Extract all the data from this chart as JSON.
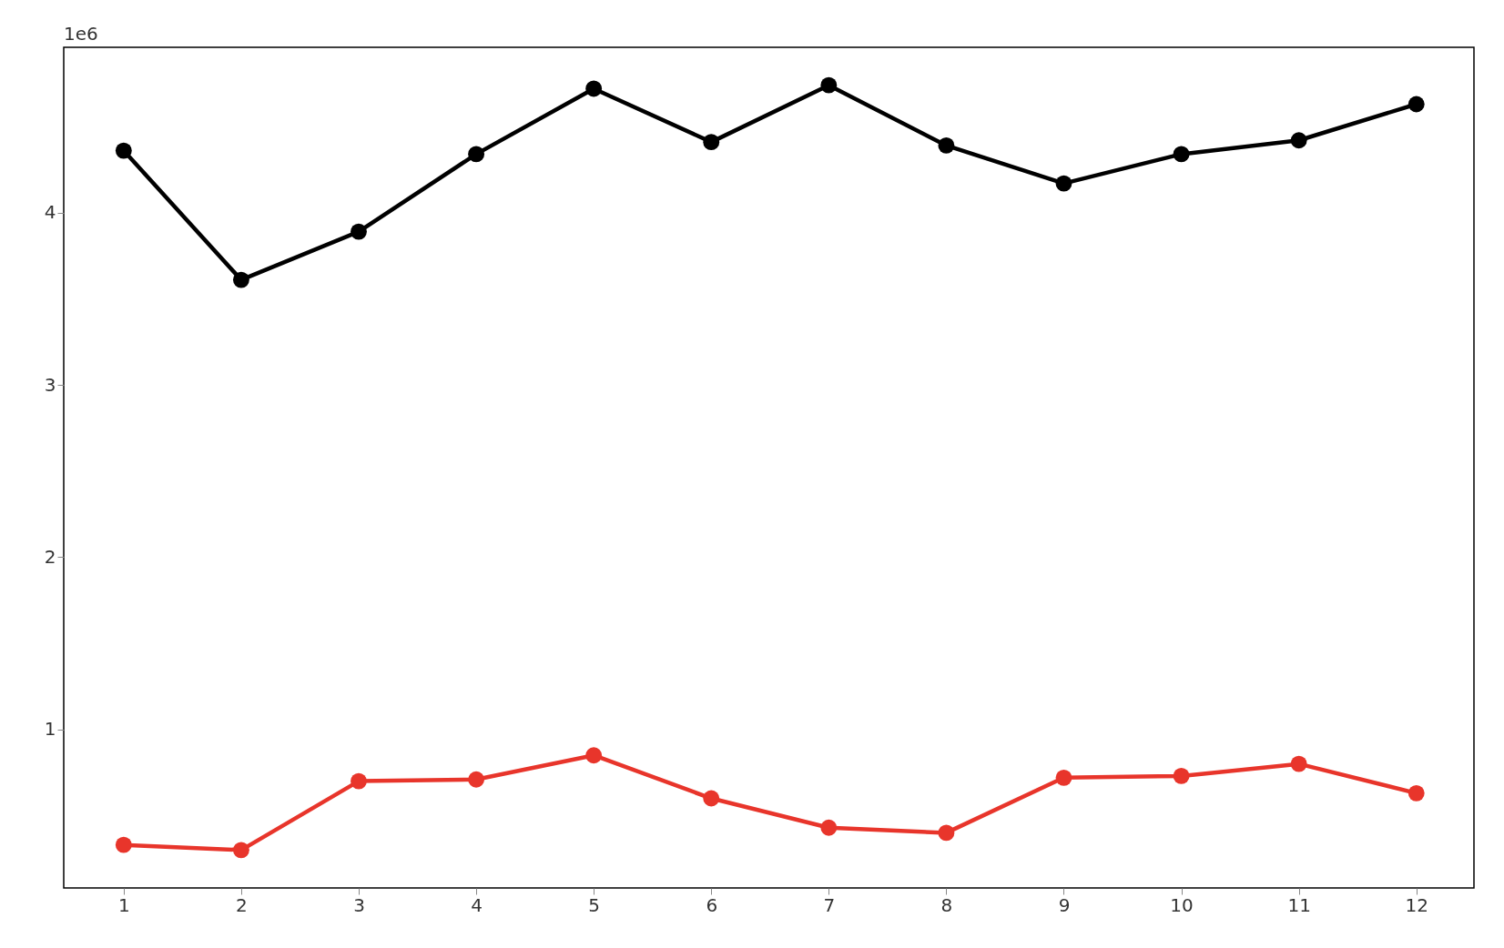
{
  "chart_data": {
    "type": "line",
    "x": [
      1,
      2,
      3,
      4,
      5,
      6,
      7,
      8,
      9,
      10,
      11,
      12
    ],
    "series": [
      {
        "color": "#000000",
        "values": [
          4.36,
          3.61,
          3.89,
          4.34,
          4.72,
          4.41,
          4.74,
          4.39,
          4.17,
          4.34,
          4.42,
          4.63
        ]
      },
      {
        "color": "#e8352b",
        "values": [
          0.33,
          0.3,
          0.7,
          0.71,
          0.85,
          0.6,
          0.43,
          0.4,
          0.72,
          0.73,
          0.8,
          0.63
        ]
      }
    ],
    "xlim": [
      0.49,
      12.49
    ],
    "xticks": [
      1,
      2,
      3,
      4,
      5,
      6,
      7,
      8,
      9,
      10,
      11,
      12
    ],
    "ylim": [
      0.08,
      4.96
    ],
    "yticks": [
      1,
      2,
      3,
      4
    ],
    "annotations": [
      "1e6"
    ],
    "grid": false,
    "marker": "circle",
    "line_style": "solid"
  }
}
